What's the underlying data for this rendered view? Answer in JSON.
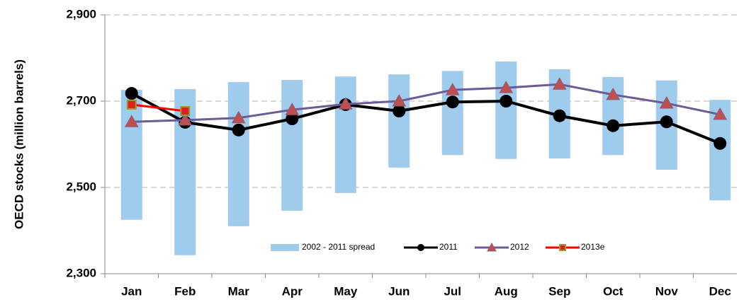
{
  "chart_data": {
    "type": "range-bar-line",
    "y_label": "OECD stocks (million barrels)",
    "categories": [
      "Jan",
      "Feb",
      "Mar",
      "Apr",
      "May",
      "Jun",
      "Jul",
      "Aug",
      "Sep",
      "Oct",
      "Nov",
      "Dec"
    ],
    "spread": {
      "name": "2002 - 2011 spread",
      "color": "#9fcbec",
      "low": [
        2425,
        2343,
        2410,
        2446,
        2487,
        2546,
        2575,
        2566,
        2567,
        2575,
        2541,
        2470
      ],
      "high": [
        2726,
        2728,
        2744,
        2749,
        2757,
        2762,
        2770,
        2792,
        2774,
        2756,
        2748,
        2703
      ]
    },
    "series": [
      {
        "name": "2011",
        "color": "#000000",
        "marker": "circle",
        "marker_color": "#000000",
        "values": [
          2718,
          2651,
          2633,
          2659,
          2692,
          2677,
          2698,
          2700,
          2666,
          2643,
          2652,
          2602
        ]
      },
      {
        "name": "2012",
        "color": "#6d5a96",
        "marker": "triangle",
        "marker_color": "#c0504d",
        "values": [
          2652,
          2656,
          2661,
          2680,
          2693,
          2700,
          2726,
          2731,
          2739,
          2715,
          2695,
          2669
        ]
      },
      {
        "name": "2013e",
        "color": "#ff0000",
        "marker": "square",
        "marker_color": "#e02020",
        "values": [
          2692,
          2677,
          null,
          null,
          null,
          null,
          null,
          null,
          null,
          null,
          null,
          null
        ]
      }
    ],
    "ylim": [
      2300,
      2900
    ],
    "yticks": [
      {
        "value": 2300,
        "label": "2,300"
      },
      {
        "value": 2500,
        "label": "2,500"
      },
      {
        "value": 2700,
        "label": "2,700"
      },
      {
        "value": 2900,
        "label": "2,900"
      }
    ],
    "grid": true,
    "legend": "bottom"
  }
}
